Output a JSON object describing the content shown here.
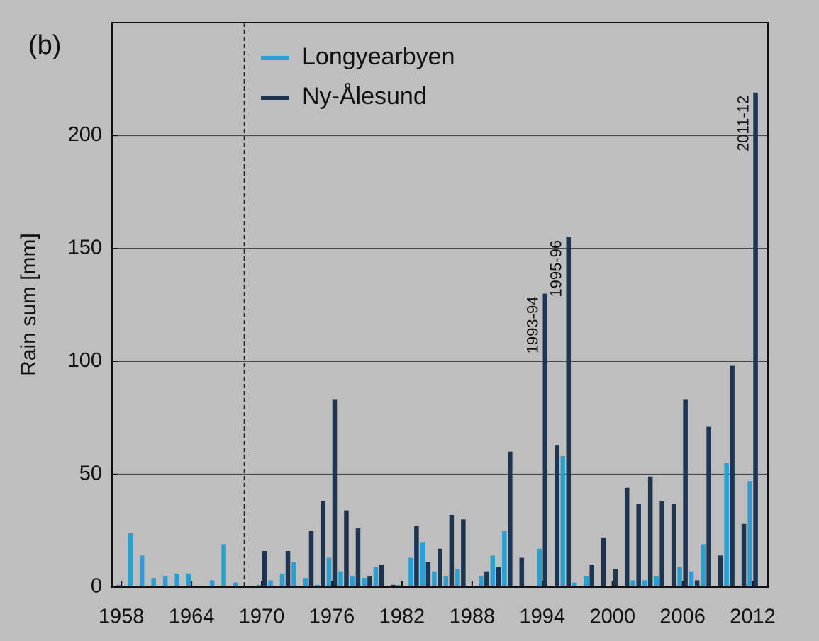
{
  "chart_data": {
    "type": "bar",
    "title": "(b)",
    "y_label": "Rain sum [mm]",
    "x": [
      1958,
      1959,
      1960,
      1961,
      1962,
      1963,
      1964,
      1965,
      1966,
      1967,
      1968,
      1969,
      1970,
      1971,
      1972,
      1973,
      1974,
      1975,
      1976,
      1977,
      1978,
      1979,
      1980,
      1981,
      1982,
      1983,
      1984,
      1985,
      1986,
      1987,
      1988,
      1989,
      1990,
      1991,
      1992,
      1993,
      1994,
      1995,
      1996,
      1997,
      1998,
      1999,
      2000,
      2001,
      2002,
      2003,
      2004,
      2005,
      2006,
      2007,
      2008,
      2009,
      2010,
      2011,
      2012
    ],
    "series": [
      {
        "name": "Longyearbyen",
        "color": "#2b9fd1",
        "values": [
          1,
          24,
          14,
          4,
          5,
          6,
          6,
          null,
          3,
          19,
          2,
          null,
          1,
          3,
          6,
          11,
          4,
          1,
          13,
          7,
          5,
          4,
          9,
          null,
          1,
          13,
          20,
          7,
          5,
          8,
          null,
          5,
          14,
          25,
          null,
          null,
          17,
          null,
          58,
          2,
          5,
          null,
          null,
          null,
          3,
          3,
          5,
          null,
          9,
          7,
          19,
          null,
          55,
          null,
          47
        ]
      },
      {
        "name": "Ny-Ålesund",
        "color": "#1e3450",
        "values": [
          null,
          null,
          null,
          null,
          null,
          null,
          null,
          null,
          null,
          null,
          null,
          null,
          16,
          null,
          16,
          null,
          25,
          38,
          83,
          34,
          26,
          5,
          10,
          1,
          null,
          27,
          11,
          17,
          32,
          30,
          null,
          7,
          9,
          60,
          13,
          null,
          130,
          63,
          155,
          null,
          10,
          22,
          8,
          44,
          37,
          49,
          38,
          37,
          83,
          3,
          71,
          14,
          98,
          28,
          219
        ]
      }
    ],
    "annotations": [
      {
        "text": "1993-94",
        "x": 1994
      },
      {
        "text": "1995-96",
        "x": 1996
      },
      {
        "text": "2011-12",
        "x": 2012
      }
    ],
    "divider_x": 1968.5,
    "xlim": [
      1957.2,
      2013.3
    ],
    "xticks": [
      1958,
      1964,
      1970,
      1976,
      1982,
      1988,
      1994,
      2000,
      2006,
      2012
    ],
    "ylim": [
      0,
      250
    ],
    "yticks": [
      0,
      50,
      100,
      150,
      200
    ],
    "grid": true,
    "legend": "upper left"
  }
}
